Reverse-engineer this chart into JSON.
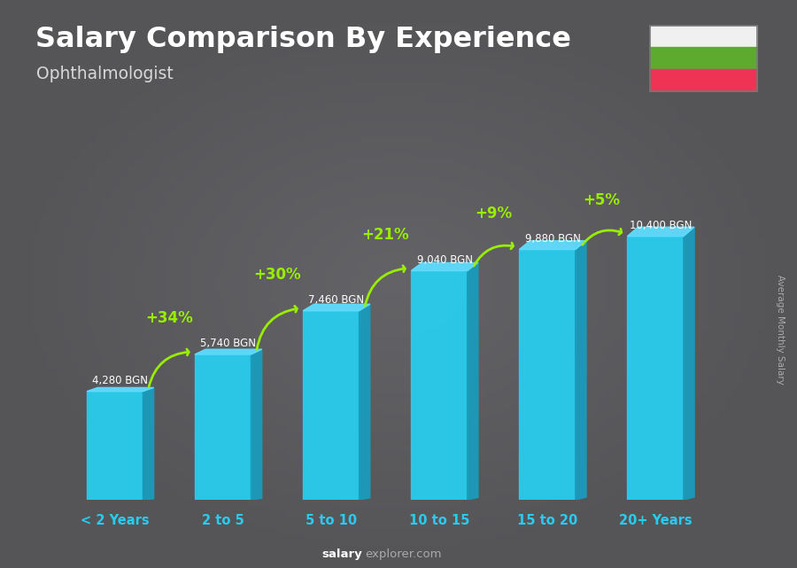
{
  "title": "Salary Comparison By Experience",
  "subtitle": "Ophthalmologist",
  "categories": [
    "< 2 Years",
    "2 to 5",
    "5 to 10",
    "10 to 15",
    "15 to 20",
    "20+ Years"
  ],
  "values": [
    4280,
    5740,
    7460,
    9040,
    9880,
    10400
  ],
  "value_labels": [
    "4,280 BGN",
    "5,740 BGN",
    "7,460 BGN",
    "9,040 BGN",
    "9,880 BGN",
    "10,400 BGN"
  ],
  "pct_labels": [
    "+34%",
    "+30%",
    "+21%",
    "+9%",
    "+5%"
  ],
  "bar_color_face": "#29CCEE",
  "bar_color_side": "#1A9BBB",
  "bar_color_top": "#60DDFF",
  "bg_color": "#555558",
  "bg_color_center": "#6a6a6e",
  "title_color": "#FFFFFF",
  "subtitle_color": "#d8d8d8",
  "value_label_color": "#FFFFFF",
  "pct_color": "#99EE00",
  "xlabel_color": "#29CCEE",
  "footer_salary_color": "#FFFFFF",
  "footer_explorer_color": "#aaaaaa",
  "ylabel_text": "Average Monthly Salary",
  "ylim": [
    0,
    13000
  ],
  "flag_white": "#F0F0F0",
  "flag_green": "#5DAA2F",
  "flag_red": "#EE3355"
}
